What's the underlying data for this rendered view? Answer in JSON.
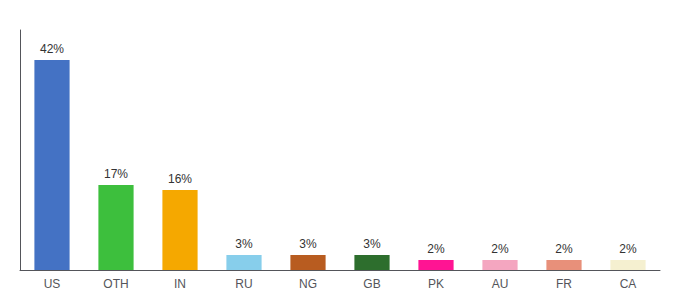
{
  "chart_data": {
    "type": "bar",
    "categories": [
      "US",
      "OTH",
      "IN",
      "RU",
      "NG",
      "GB",
      "PK",
      "AU",
      "FR",
      "CA"
    ],
    "values": [
      42,
      17,
      16,
      3,
      3,
      3,
      2,
      2,
      2,
      2
    ],
    "value_labels": [
      "42%",
      "17%",
      "16%",
      "3%",
      "3%",
      "3%",
      "2%",
      "2%",
      "2%",
      "2%"
    ],
    "colors": [
      "#4472c4",
      "#3dbf3d",
      "#f5a800",
      "#87ceeb",
      "#b85c20",
      "#2d6e2d",
      "#ff1493",
      "#f4a6c0",
      "#e8907a",
      "#f5f0d0"
    ],
    "ylim": [
      0,
      48
    ],
    "data_labels": true,
    "tick_labels": "x",
    "grid": false
  }
}
